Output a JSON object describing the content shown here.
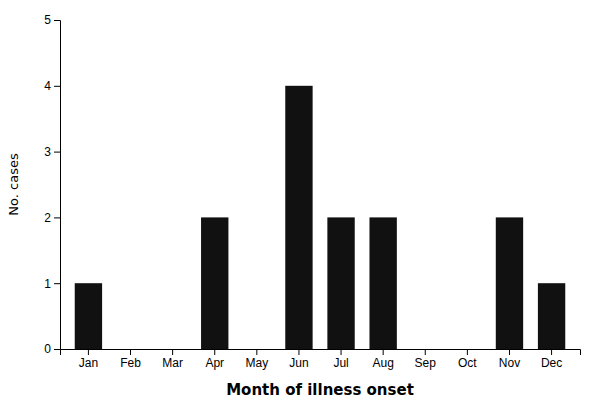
{
  "chart_data": {
    "type": "bar",
    "categories": [
      "Jan",
      "Feb",
      "Mar",
      "Apr",
      "May",
      "Jun",
      "Jul",
      "Aug",
      "Sep",
      "Oct",
      "Nov",
      "Dec"
    ],
    "values": [
      1,
      0,
      0,
      2,
      0,
      4,
      2,
      2,
      0,
      0,
      2,
      1
    ],
    "color": "#111111",
    "xlabel": "Month of illness onset",
    "ylabel": "No. cases",
    "ylim": [
      0,
      5
    ],
    "yticks": [
      0,
      1,
      2,
      3,
      4,
      5
    ],
    "grid": false
  }
}
